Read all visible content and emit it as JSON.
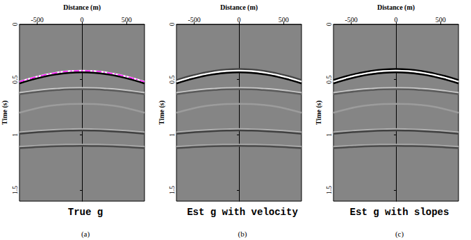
{
  "chart_data": [
    {
      "type": "line",
      "title": "True g",
      "panel_label": "(a)",
      "x_label": "Distance (m)",
      "y_label": "Time (s)",
      "x": [
        -700,
        -560,
        -420,
        -280,
        -140,
        0,
        140,
        280,
        420,
        560,
        700
      ],
      "xlim": [
        -700,
        700
      ],
      "xticks": [
        -500,
        0,
        500
      ],
      "ylim": [
        0,
        1.6
      ],
      "yticks": [
        0,
        0.5,
        1,
        1.5
      ],
      "grid": false,
      "series": [
        {
          "color": "#ffffff",
          "line_style": "solid",
          "values": [
            0.52,
            0.486,
            0.458,
            0.437,
            0.424,
            0.42,
            0.424,
            0.437,
            0.458,
            0.486,
            0.52
          ]
        },
        {
          "color": "#000000",
          "line_style": "solid",
          "values": [
            0.535,
            0.501,
            0.473,
            0.452,
            0.439,
            0.435,
            0.439,
            0.452,
            0.473,
            0.501,
            0.535
          ]
        },
        {
          "color": "#c8c8c8",
          "line_style": "solid",
          "values": [
            0.62,
            0.605,
            0.592,
            0.583,
            0.577,
            0.575,
            0.577,
            0.583,
            0.592,
            0.605,
            0.62
          ]
        },
        {
          "color": "#5a5a5a",
          "line_style": "solid",
          "values": [
            0.632,
            0.617,
            0.604,
            0.595,
            0.589,
            0.587,
            0.589,
            0.595,
            0.604,
            0.617,
            0.632
          ]
        },
        {
          "color": "#9c9c9c",
          "line_style": "solid",
          "values": [
            0.8,
            0.77,
            0.745,
            0.73,
            0.722,
            0.72,
            0.722,
            0.73,
            0.745,
            0.77,
            0.8
          ]
        },
        {
          "color": "#b0b0b0",
          "line_style": "solid",
          "values": [
            0.978,
            0.968,
            0.96,
            0.954,
            0.95,
            0.948,
            0.95,
            0.954,
            0.96,
            0.968,
            0.978
          ]
        },
        {
          "color": "#404040",
          "line_style": "solid",
          "values": [
            0.99,
            0.98,
            0.972,
            0.966,
            0.962,
            0.96,
            0.962,
            0.966,
            0.972,
            0.98,
            0.99
          ]
        },
        {
          "color": "#a8a8a8",
          "line_style": "solid",
          "values": [
            1.108,
            1.101,
            1.095,
            1.091,
            1.089,
            1.088,
            1.089,
            1.091,
            1.095,
            1.101,
            1.108
          ]
        },
        {
          "color": "#4a4a4a",
          "line_style": "solid",
          "values": [
            1.12,
            1.113,
            1.107,
            1.103,
            1.101,
            1.1,
            1.101,
            1.103,
            1.107,
            1.113,
            1.12
          ]
        },
        {
          "color": "#ff00ff",
          "line_style": "dashdot",
          "values": [
            0.52,
            0.486,
            0.458,
            0.437,
            0.424,
            0.42,
            0.424,
            0.437,
            0.458,
            0.486,
            0.52
          ]
        }
      ]
    },
    {
      "type": "line",
      "title": "Est g with velocity",
      "panel_label": "(b)",
      "x_label": "Distance (m)",
      "y_label": "Time (s)",
      "x": [
        -700,
        -560,
        -420,
        -280,
        -140,
        0,
        140,
        280,
        420,
        560,
        700
      ],
      "xlim": [
        -700,
        700
      ],
      "xticks": [
        -500,
        0,
        500
      ],
      "ylim": [
        0,
        1.6
      ],
      "yticks": [
        0,
        0.5,
        1,
        1.5
      ],
      "grid": false,
      "series": [
        {
          "color": "#444444",
          "line_style": "solid",
          "values": [
            0.505,
            0.471,
            0.443,
            0.422,
            0.409,
            0.405,
            0.409,
            0.422,
            0.443,
            0.471,
            0.505
          ]
        },
        {
          "color": "#ffffff",
          "line_style": "solid",
          "values": [
            0.52,
            0.486,
            0.458,
            0.437,
            0.424,
            0.42,
            0.424,
            0.437,
            0.458,
            0.486,
            0.52
          ]
        },
        {
          "color": "#000000",
          "line_style": "solid",
          "values": [
            0.535,
            0.501,
            0.473,
            0.452,
            0.439,
            0.435,
            0.439,
            0.452,
            0.473,
            0.501,
            0.535
          ]
        },
        {
          "color": "#c8c8c8",
          "line_style": "solid",
          "values": [
            0.62,
            0.605,
            0.592,
            0.583,
            0.577,
            0.575,
            0.577,
            0.583,
            0.592,
            0.605,
            0.62
          ]
        },
        {
          "color": "#5a5a5a",
          "line_style": "solid",
          "values": [
            0.632,
            0.617,
            0.604,
            0.595,
            0.589,
            0.587,
            0.589,
            0.595,
            0.604,
            0.617,
            0.632
          ]
        },
        {
          "color": "#9c9c9c",
          "line_style": "solid",
          "values": [
            0.8,
            0.77,
            0.745,
            0.73,
            0.722,
            0.72,
            0.722,
            0.73,
            0.745,
            0.77,
            0.8
          ]
        },
        {
          "color": "#b0b0b0",
          "line_style": "solid",
          "values": [
            0.978,
            0.968,
            0.96,
            0.954,
            0.95,
            0.948,
            0.95,
            0.954,
            0.96,
            0.968,
            0.978
          ]
        },
        {
          "color": "#404040",
          "line_style": "solid",
          "values": [
            0.99,
            0.98,
            0.972,
            0.966,
            0.962,
            0.96,
            0.962,
            0.966,
            0.972,
            0.98,
            0.99
          ]
        },
        {
          "color": "#a8a8a8",
          "line_style": "solid",
          "values": [
            1.108,
            1.101,
            1.095,
            1.091,
            1.089,
            1.088,
            1.089,
            1.091,
            1.095,
            1.101,
            1.108
          ]
        },
        {
          "color": "#4a4a4a",
          "line_style": "solid",
          "values": [
            1.12,
            1.113,
            1.107,
            1.103,
            1.101,
            1.1,
            1.101,
            1.103,
            1.107,
            1.113,
            1.12
          ]
        }
      ]
    },
    {
      "type": "line",
      "title": "Est g with slopes",
      "panel_label": "(c)",
      "x_label": "Distance (m)",
      "y_label": "Time (s)",
      "x": [
        -700,
        -560,
        -420,
        -280,
        -140,
        0,
        140,
        280,
        420,
        560,
        700
      ],
      "xlim": [
        -700,
        700
      ],
      "xticks": [
        -500,
        0,
        500
      ],
      "ylim": [
        0,
        1.6
      ],
      "yticks": [
        0,
        0.5,
        1,
        1.5
      ],
      "grid": false,
      "series": [
        {
          "color": "#000000",
          "line_style": "solid",
          "values": [
            0.505,
            0.471,
            0.443,
            0.422,
            0.409,
            0.405,
            0.409,
            0.422,
            0.443,
            0.471,
            0.505
          ]
        },
        {
          "color": "#ffffff",
          "line_style": "solid",
          "values": [
            0.52,
            0.486,
            0.458,
            0.437,
            0.424,
            0.42,
            0.424,
            0.437,
            0.458,
            0.486,
            0.52
          ]
        },
        {
          "color": "#000000",
          "line_style": "solid",
          "values": [
            0.535,
            0.501,
            0.473,
            0.452,
            0.439,
            0.435,
            0.439,
            0.452,
            0.473,
            0.501,
            0.535
          ]
        },
        {
          "color": "#c8c8c8",
          "line_style": "solid",
          "values": [
            0.62,
            0.605,
            0.592,
            0.583,
            0.577,
            0.575,
            0.577,
            0.583,
            0.592,
            0.605,
            0.62
          ]
        },
        {
          "color": "#5a5a5a",
          "line_style": "solid",
          "values": [
            0.632,
            0.617,
            0.604,
            0.595,
            0.589,
            0.587,
            0.589,
            0.595,
            0.604,
            0.617,
            0.632
          ]
        },
        {
          "color": "#9c9c9c",
          "line_style": "solid",
          "values": [
            0.8,
            0.77,
            0.745,
            0.73,
            0.722,
            0.72,
            0.722,
            0.73,
            0.745,
            0.77,
            0.8
          ]
        },
        {
          "color": "#b0b0b0",
          "line_style": "solid",
          "values": [
            0.978,
            0.968,
            0.96,
            0.954,
            0.95,
            0.948,
            0.95,
            0.954,
            0.96,
            0.968,
            0.978
          ]
        },
        {
          "color": "#404040",
          "line_style": "solid",
          "values": [
            0.99,
            0.98,
            0.972,
            0.966,
            0.962,
            0.96,
            0.962,
            0.966,
            0.972,
            0.98,
            0.99
          ]
        },
        {
          "color": "#a8a8a8",
          "line_style": "solid",
          "values": [
            1.108,
            1.101,
            1.095,
            1.091,
            1.089,
            1.088,
            1.089,
            1.091,
            1.095,
            1.101,
            1.108
          ]
        },
        {
          "color": "#4a4a4a",
          "line_style": "solid",
          "values": [
            1.12,
            1.113,
            1.107,
            1.103,
            1.101,
            1.1,
            1.101,
            1.103,
            1.107,
            1.113,
            1.12
          ]
        }
      ]
    }
  ]
}
